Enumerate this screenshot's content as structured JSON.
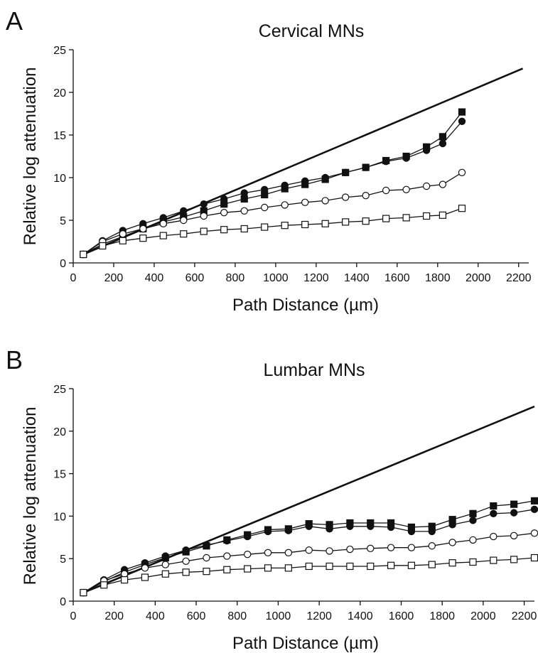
{
  "chart_data": [
    {
      "type": "line",
      "panel": "A",
      "title": "Cervical MNs",
      "xlabel": "Path Distance (µm)",
      "ylabel": "Relative log attenuation",
      "xlim": [
        0,
        2250
      ],
      "ylim": [
        0,
        25
      ],
      "xticks": [
        0,
        200,
        400,
        600,
        800,
        1000,
        1200,
        1400,
        1600,
        1800,
        2000,
        2200
      ],
      "yticks": [
        0,
        5,
        10,
        15,
        20,
        25
      ],
      "grid": false,
      "legend": "none",
      "series": [
        {
          "marker": "none",
          "x": [
            50,
            2220
          ],
          "values": [
            1.0,
            22.8
          ]
        },
        {
          "marker": "filled-square",
          "x": [
            50,
            145,
            245,
            345,
            445,
            545,
            645,
            745,
            845,
            945,
            1045,
            1145,
            1245,
            1345,
            1445,
            1545,
            1645,
            1745,
            1825,
            1920
          ],
          "values": [
            1.0,
            2.2,
            3.1,
            4.0,
            4.8,
            5.4,
            6.1,
            6.9,
            7.5,
            8.0,
            8.7,
            9.2,
            9.8,
            10.6,
            11.2,
            12.0,
            12.5,
            13.6,
            14.8,
            17.7
          ]
        },
        {
          "marker": "filled-circle",
          "x": [
            50,
            145,
            245,
            345,
            445,
            545,
            645,
            745,
            845,
            945,
            1045,
            1145,
            1245,
            1345,
            1445,
            1545,
            1645,
            1745,
            1825,
            1920
          ],
          "values": [
            1.0,
            2.6,
            3.8,
            4.6,
            5.3,
            6.1,
            6.9,
            7.5,
            8.2,
            8.6,
            9.1,
            9.6,
            10.0,
            10.6,
            11.2,
            11.9,
            12.3,
            13.2,
            14.0,
            16.6
          ]
        },
        {
          "marker": "open-circle",
          "x": [
            50,
            145,
            245,
            345,
            445,
            545,
            645,
            745,
            845,
            945,
            1045,
            1145,
            1245,
            1345,
            1445,
            1545,
            1645,
            1745,
            1825,
            1920
          ],
          "values": [
            1.0,
            2.5,
            3.4,
            4.0,
            4.6,
            5.0,
            5.5,
            5.9,
            6.1,
            6.5,
            6.8,
            7.1,
            7.3,
            7.7,
            7.9,
            8.5,
            8.6,
            9.0,
            9.2,
            10.6
          ]
        },
        {
          "marker": "open-square",
          "x": [
            50,
            145,
            245,
            345,
            445,
            545,
            645,
            745,
            845,
            945,
            1045,
            1145,
            1245,
            1345,
            1445,
            1545,
            1645,
            1745,
            1825,
            1920
          ],
          "values": [
            1.0,
            2.0,
            2.6,
            2.9,
            3.2,
            3.4,
            3.7,
            3.9,
            4.0,
            4.2,
            4.4,
            4.5,
            4.6,
            4.8,
            4.9,
            5.2,
            5.3,
            5.5,
            5.6,
            6.4
          ]
        }
      ]
    },
    {
      "type": "line",
      "panel": "B",
      "title": "Lumbar MNs",
      "xlabel": "Path Distance (µm)",
      "ylabel": "Relative log attenuation",
      "xlim": [
        0,
        2250
      ],
      "ylim": [
        0,
        25
      ],
      "xticks": [
        0,
        200,
        400,
        600,
        800,
        1000,
        1200,
        1400,
        1600,
        1800,
        2000,
        2200
      ],
      "yticks": [
        0,
        5,
        10,
        15,
        20,
        25
      ],
      "grid": false,
      "legend": "none",
      "series": [
        {
          "marker": "none",
          "x": [
            50,
            2250
          ],
          "values": [
            1.0,
            22.9
          ]
        },
        {
          "marker": "filled-square",
          "x": [
            50,
            150,
            250,
            350,
            450,
            550,
            650,
            750,
            850,
            950,
            1050,
            1150,
            1250,
            1350,
            1450,
            1550,
            1650,
            1750,
            1850,
            1950,
            2050,
            2150,
            2250
          ],
          "values": [
            1.0,
            2.3,
            3.4,
            4.3,
            5.1,
            5.8,
            6.5,
            7.2,
            7.8,
            8.4,
            8.5,
            9.1,
            9.0,
            9.2,
            9.2,
            9.2,
            8.7,
            8.8,
            9.6,
            10.3,
            11.2,
            11.4,
            11.8
          ]
        },
        {
          "marker": "filled-circle",
          "x": [
            50,
            150,
            250,
            350,
            450,
            550,
            650,
            750,
            850,
            950,
            1050,
            1150,
            1250,
            1350,
            1450,
            1550,
            1650,
            1750,
            1850,
            1950,
            2050,
            2150,
            2250
          ],
          "values": [
            1.0,
            2.5,
            3.7,
            4.5,
            5.3,
            6.0,
            6.6,
            7.1,
            7.6,
            8.2,
            8.3,
            8.8,
            8.5,
            8.8,
            8.8,
            8.7,
            8.2,
            8.2,
            9.0,
            9.5,
            10.3,
            10.4,
            10.8
          ]
        },
        {
          "marker": "open-circle",
          "x": [
            50,
            150,
            250,
            350,
            450,
            550,
            650,
            750,
            850,
            950,
            1050,
            1150,
            1250,
            1350,
            1450,
            1550,
            1650,
            1750,
            1850,
            1950,
            2050,
            2150,
            2250
          ],
          "values": [
            1.0,
            2.4,
            3.2,
            3.9,
            4.3,
            4.7,
            5.1,
            5.3,
            5.5,
            5.7,
            5.7,
            6.0,
            5.9,
            6.1,
            6.2,
            6.3,
            6.3,
            6.5,
            6.9,
            7.2,
            7.6,
            7.7,
            8.0
          ]
        },
        {
          "marker": "open-square",
          "x": [
            50,
            150,
            250,
            350,
            450,
            550,
            650,
            750,
            850,
            950,
            1050,
            1150,
            1250,
            1350,
            1450,
            1550,
            1650,
            1750,
            1850,
            1950,
            2050,
            2150,
            2250
          ],
          "values": [
            1.0,
            1.9,
            2.5,
            2.8,
            3.2,
            3.4,
            3.5,
            3.7,
            3.8,
            3.9,
            3.9,
            4.1,
            4.1,
            4.1,
            4.1,
            4.2,
            4.2,
            4.3,
            4.5,
            4.6,
            4.8,
            4.9,
            5.1
          ]
        }
      ]
    }
  ]
}
